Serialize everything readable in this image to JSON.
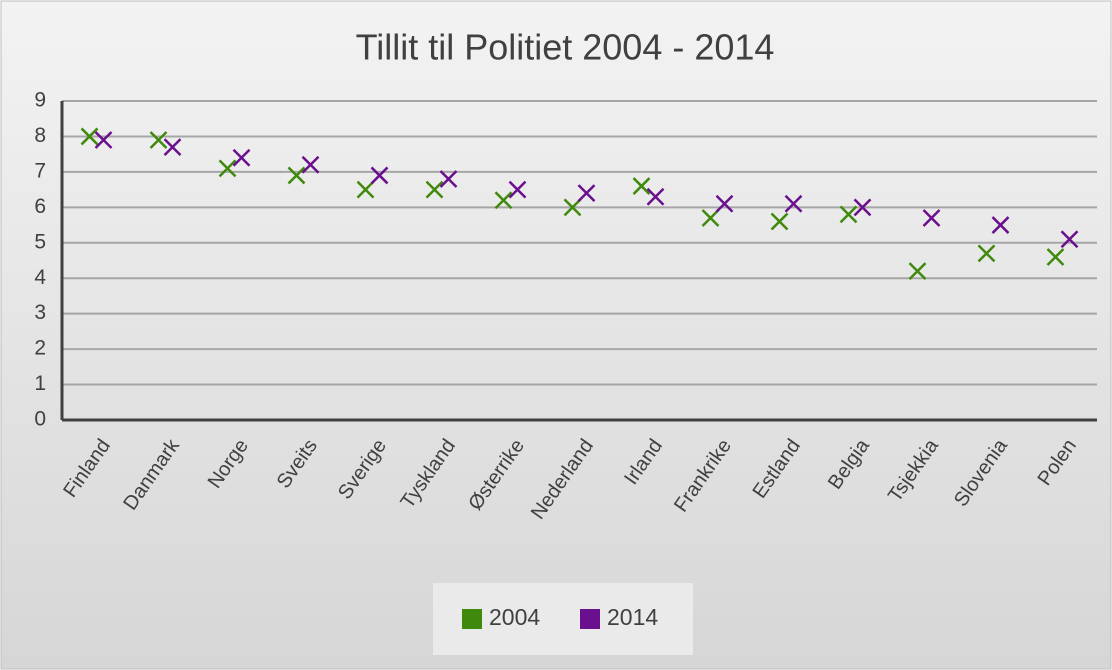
{
  "chart_data": {
    "type": "scatter",
    "title": "Tillit til Politiet 2004 - 2014",
    "categories": [
      "Finland",
      "Danmark",
      "Norge",
      "Sveits",
      "Sverige",
      "Tyskland",
      "Østerrike",
      "Nederland",
      "Irland",
      "Frankrike",
      "Estland",
      "Belgia",
      "Tsjekkia",
      "Slovenia",
      "Polen"
    ],
    "series": [
      {
        "name": "2004",
        "color": "#3f8a0c",
        "values": [
          8.0,
          7.9,
          7.1,
          6.9,
          6.5,
          6.5,
          6.2,
          6.0,
          6.6,
          5.7,
          5.6,
          5.8,
          4.2,
          4.7,
          4.6
        ]
      },
      {
        "name": "2014",
        "color": "#6a0f8e",
        "values": [
          7.9,
          7.7,
          7.4,
          7.2,
          6.9,
          6.8,
          6.5,
          6.4,
          6.3,
          6.1,
          6.1,
          6.0,
          5.7,
          5.5,
          5.1
        ]
      }
    ],
    "ylim": [
      0,
      9
    ],
    "yticks": [
      0,
      1,
      2,
      3,
      4,
      5,
      6,
      7,
      8,
      9
    ],
    "grid": true,
    "legend": "bottom"
  }
}
